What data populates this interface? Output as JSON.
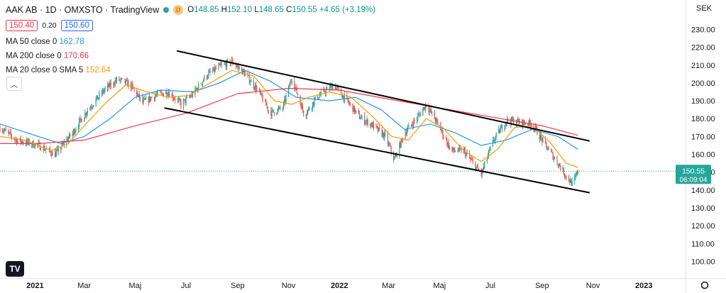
{
  "header": {
    "title": "AAK AB · 1D · OMXSTO · TradingView",
    "badge": "D",
    "ohlc": {
      "o_label": "O",
      "o": "148.85",
      "h_label": "H",
      "h": "152.10",
      "l_label": "L",
      "l": "148.65",
      "c_label": "C",
      "c": "150.55",
      "change": "+4.65 (+3.19%)"
    }
  },
  "quote": {
    "bid": "150.40",
    "spread": "0.20",
    "ask": "150.60"
  },
  "indicators": [
    {
      "label": "MA 50 close 0",
      "value": "162.78",
      "color": "#2196f3"
    },
    {
      "label": "MA 200 close 0",
      "value": "170.66",
      "color": "#f23645"
    },
    {
      "label": "MA 20 close 0 SMA 5",
      "value": "152.64",
      "color": "#ff9800"
    }
  ],
  "currency": "SEK",
  "last_price": {
    "value": "150.55",
    "countdown": "06:09:04"
  },
  "chart_data": {
    "type": "candlestick",
    "title": "AAK AB · 1D · OMXSTO",
    "ylabel": "",
    "xlabel": "",
    "ylim": [
      94,
      244
    ],
    "y_ticks": [
      100,
      110,
      120,
      130,
      140,
      150,
      160,
      170,
      180,
      190,
      200,
      210,
      220,
      230
    ],
    "x_ticks": [
      {
        "label": "2021",
        "date": "2021-01-01"
      },
      {
        "label": "Mar",
        "date": "2021-03-01"
      },
      {
        "label": "Maj",
        "date": "2021-05-01"
      },
      {
        "label": "Jul",
        "date": "2021-07-01"
      },
      {
        "label": "Sep",
        "date": "2021-09-01"
      },
      {
        "label": "Nov",
        "date": "2021-11-01"
      },
      {
        "label": "2022",
        "date": "2022-01-01"
      },
      {
        "label": "Mar",
        "date": "2022-03-01"
      },
      {
        "label": "Maj",
        "date": "2022-05-01"
      },
      {
        "label": "Jul",
        "date": "2022-07-01"
      },
      {
        "label": "Sep",
        "date": "2022-09-01"
      },
      {
        "label": "Nov",
        "date": "2022-11-01"
      },
      {
        "label": "2023",
        "date": "2023-01-01"
      }
    ],
    "xlim": [
      "2020-11-20",
      "2023-02-20"
    ],
    "price_path": [
      [
        "2020-11-20",
        175
      ],
      [
        "2020-12-10",
        168
      ],
      [
        "2021-01-05",
        165
      ],
      [
        "2021-01-25",
        160
      ],
      [
        "2021-02-15",
        172
      ],
      [
        "2021-03-05",
        185
      ],
      [
        "2021-03-25",
        196
      ],
      [
        "2021-04-10",
        202
      ],
      [
        "2021-04-25",
        199
      ],
      [
        "2021-05-10",
        189
      ],
      [
        "2021-05-25",
        193
      ],
      [
        "2021-06-10",
        195
      ],
      [
        "2021-06-25",
        188
      ],
      [
        "2021-07-10",
        194
      ],
      [
        "2021-07-25",
        204
      ],
      [
        "2021-08-10",
        209
      ],
      [
        "2021-08-25",
        212
      ],
      [
        "2021-09-10",
        205
      ],
      [
        "2021-09-25",
        196
      ],
      [
        "2021-10-10",
        183
      ],
      [
        "2021-10-25",
        186
      ],
      [
        "2021-11-05",
        203
      ],
      [
        "2021-11-20",
        182
      ],
      [
        "2021-12-05",
        192
      ],
      [
        "2021-12-25",
        199
      ],
      [
        "2022-01-10",
        190
      ],
      [
        "2022-01-25",
        181
      ],
      [
        "2022-02-10",
        176
      ],
      [
        "2022-02-25",
        170
      ],
      [
        "2022-03-08",
        157
      ],
      [
        "2022-03-20",
        172
      ],
      [
        "2022-04-05",
        181
      ],
      [
        "2022-04-15",
        188
      ],
      [
        "2022-04-30",
        176
      ],
      [
        "2022-05-15",
        162
      ],
      [
        "2022-05-30",
        162
      ],
      [
        "2022-06-10",
        155
      ],
      [
        "2022-06-20",
        149
      ],
      [
        "2022-07-05",
        168
      ],
      [
        "2022-07-20",
        179
      ],
      [
        "2022-08-05",
        178
      ],
      [
        "2022-08-20",
        177
      ],
      [
        "2022-09-05",
        165
      ],
      [
        "2022-09-20",
        155
      ],
      [
        "2022-10-01",
        147
      ],
      [
        "2022-10-08",
        143
      ],
      [
        "2022-10-14",
        150.55
      ]
    ],
    "moving_averages": [
      {
        "name": "MA 50",
        "color": "#2196f3",
        "points": [
          [
            "2020-11-20",
            177
          ],
          [
            "2021-01-05",
            170
          ],
          [
            "2021-02-01",
            166
          ],
          [
            "2021-03-01",
            170
          ],
          [
            "2021-04-01",
            180
          ],
          [
            "2021-05-01",
            192
          ],
          [
            "2021-06-01",
            196
          ],
          [
            "2021-07-10",
            195
          ],
          [
            "2021-08-10",
            200
          ],
          [
            "2021-09-10",
            207
          ],
          [
            "2021-10-10",
            201
          ],
          [
            "2021-11-10",
            192
          ],
          [
            "2021-12-20",
            190
          ],
          [
            "2022-01-20",
            192
          ],
          [
            "2022-02-20",
            185
          ],
          [
            "2022-03-20",
            174
          ],
          [
            "2022-04-20",
            177
          ],
          [
            "2022-05-20",
            172
          ],
          [
            "2022-06-20",
            165
          ],
          [
            "2022-07-20",
            168
          ],
          [
            "2022-08-20",
            174
          ],
          [
            "2022-09-20",
            170
          ],
          [
            "2022-10-14",
            162.78
          ]
        ]
      },
      {
        "name": "MA 200",
        "color": "#f23645",
        "points": [
          [
            "2020-11-20",
            166
          ],
          [
            "2021-01-05",
            166
          ],
          [
            "2021-03-01",
            168
          ],
          [
            "2021-05-01",
            176
          ],
          [
            "2021-07-01",
            183
          ],
          [
            "2021-09-01",
            194
          ],
          [
            "2021-11-01",
            197
          ],
          [
            "2022-01-01",
            196
          ],
          [
            "2022-03-01",
            191
          ],
          [
            "2022-05-01",
            186
          ],
          [
            "2022-07-01",
            181
          ],
          [
            "2022-09-01",
            176
          ],
          [
            "2022-10-14",
            170.66
          ]
        ]
      },
      {
        "name": "MA 20 SMA 5",
        "color": "#ff9800",
        "points": [
          [
            "2020-11-20",
            170
          ],
          [
            "2020-12-20",
            168
          ],
          [
            "2021-01-20",
            162
          ],
          [
            "2021-02-10",
            166
          ],
          [
            "2021-03-01",
            176
          ],
          [
            "2021-03-25",
            188
          ],
          [
            "2021-04-20",
            199
          ],
          [
            "2021-05-15",
            195
          ],
          [
            "2021-06-10",
            192
          ],
          [
            "2021-07-05",
            193
          ],
          [
            "2021-07-30",
            200
          ],
          [
            "2021-08-25",
            207
          ],
          [
            "2021-09-20",
            204
          ],
          [
            "2021-10-15",
            190
          ],
          [
            "2021-11-05",
            188
          ],
          [
            "2021-11-25",
            192
          ],
          [
            "2021-12-20",
            195
          ],
          [
            "2022-01-15",
            192
          ],
          [
            "2022-02-10",
            181
          ],
          [
            "2022-03-05",
            170
          ],
          [
            "2022-03-25",
            168
          ],
          [
            "2022-04-15",
            180
          ],
          [
            "2022-05-05",
            175
          ],
          [
            "2022-05-30",
            162
          ],
          [
            "2022-06-20",
            156
          ],
          [
            "2022-07-10",
            163
          ],
          [
            "2022-07-30",
            175
          ],
          [
            "2022-08-20",
            176
          ],
          [
            "2022-09-10",
            167
          ],
          [
            "2022-09-30",
            155
          ],
          [
            "2022-10-14",
            152.64
          ]
        ]
      }
    ],
    "trend_lines": [
      {
        "from": [
          "2021-06-20",
          218
        ],
        "to": [
          "2022-10-28",
          167.5
        ]
      },
      {
        "from": [
          "2021-06-05",
          186
        ],
        "to": [
          "2022-10-28",
          138.5
        ]
      }
    ],
    "last_price_line": 150.55
  }
}
